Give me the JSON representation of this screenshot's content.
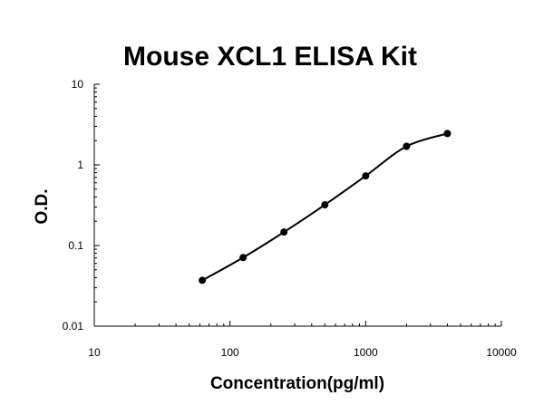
{
  "chart_data": {
    "type": "scatter",
    "title": "Mouse XCL1 ELISA Kit",
    "xlabel": "Concentration(pg/ml)",
    "ylabel": "O.D.",
    "xscale": "log",
    "yscale": "log",
    "xlim": [
      10,
      10000
    ],
    "ylim": [
      0.01,
      10
    ],
    "x_ticks": [
      "10",
      "100",
      "1000",
      "10000"
    ],
    "y_ticks": [
      "0.01",
      "0.1",
      "1",
      "10"
    ],
    "grid": false,
    "legend": "none",
    "series": [
      {
        "points": [
          {
            "x": 62.5,
            "y": 0.037
          },
          {
            "x": 125,
            "y": 0.071
          },
          {
            "x": 250,
            "y": 0.147
          },
          {
            "x": 500,
            "y": 0.32
          },
          {
            "x": 1000,
            "y": 0.73
          },
          {
            "x": 2000,
            "y": 1.7
          },
          {
            "x": 4000,
            "y": 2.45
          }
        ],
        "fit_curve": true
      }
    ],
    "colors": {
      "points": "#000000",
      "curve": "#000000",
      "axis": "#000000"
    }
  }
}
